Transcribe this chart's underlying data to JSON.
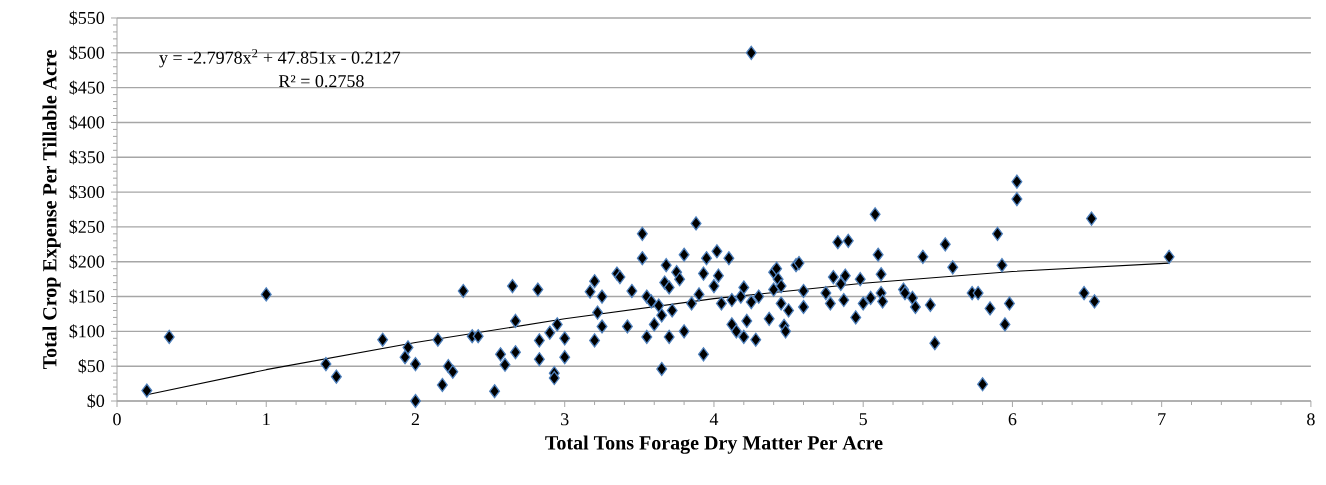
{
  "chart_data": {
    "type": "scatter",
    "xlabel": "Total Tons Forage Dry Matter Per Acre",
    "ylabel": "Total Crop Expense Per Tillable Acre",
    "annotations": [
      "y = -2.7978x$^{2}$ + 47.851x - 0.2127",
      "R² = 0.2758"
    ],
    "xlim": [
      0,
      8
    ],
    "xticks": [
      0,
      1,
      2,
      3,
      4,
      5,
      6,
      7,
      8
    ],
    "ylim": [
      0,
      550
    ],
    "yticks": [
      {
        "value": 0,
        "label": "$0"
      },
      {
        "value": 50,
        "label": "$50"
      },
      {
        "value": 100,
        "label": "$100"
      },
      {
        "value": 150,
        "label": "$150"
      },
      {
        "value": 200,
        "label": "$200"
      },
      {
        "value": 250,
        "label": "$250"
      },
      {
        "value": 300,
        "label": "$300"
      },
      {
        "value": 350,
        "label": "$350"
      },
      {
        "value": 400,
        "label": "$400"
      },
      {
        "value": 450,
        "label": "$450"
      },
      {
        "value": 500,
        "label": "$500"
      },
      {
        "value": 550,
        "label": "$550"
      }
    ],
    "grid": "y",
    "series": [
      {
        "color": "#000000",
        "marker": "diamond",
        "x": [
          0.2,
          0.35,
          1.0,
          1.4,
          1.47,
          1.78,
          1.93,
          1.95,
          2.0,
          2.0,
          2.15,
          2.18,
          2.22,
          2.25,
          2.32,
          2.38,
          2.42,
          2.53,
          2.57,
          2.6,
          2.65,
          2.67,
          2.67,
          2.82,
          2.83,
          2.83,
          2.9,
          2.93,
          2.93,
          2.95,
          3.0,
          3.0,
          3.17,
          3.2,
          3.2,
          3.22,
          3.25,
          3.25,
          3.35,
          3.37,
          3.42,
          3.45,
          3.52,
          3.52,
          3.55,
          3.58,
          3.55,
          3.6,
          3.63,
          3.65,
          3.65,
          3.67,
          3.68,
          3.7,
          3.7,
          3.72,
          3.75,
          3.77,
          3.8,
          3.8,
          3.85,
          3.88,
          3.9,
          3.93,
          3.93,
          3.95,
          4.02,
          4.0,
          4.03,
          4.05,
          4.1,
          4.12,
          4.12,
          4.15,
          4.18,
          4.2,
          4.2,
          4.22,
          4.25,
          4.25,
          4.28,
          4.3,
          4.37,
          4.4,
          4.4,
          4.42,
          4.43,
          4.45,
          4.45,
          4.47,
          4.48,
          4.5,
          4.55,
          4.57,
          4.6,
          4.6,
          4.75,
          4.78,
          4.8,
          4.83,
          4.85,
          4.87,
          4.88,
          4.9,
          4.95,
          4.98,
          5.0,
          5.05,
          5.08,
          5.1,
          5.12,
          5.12,
          5.13,
          5.27,
          5.28,
          5.33,
          5.35,
          5.4,
          5.45,
          5.48,
          5.55,
          5.6,
          5.73,
          5.77,
          5.8,
          5.85,
          5.9,
          5.93,
          5.95,
          5.98,
          6.03,
          6.03,
          6.48,
          6.53,
          6.55,
          7.05
        ],
        "values": [
          15,
          92,
          153,
          53,
          35,
          88,
          63,
          77,
          53,
          0,
          88,
          23,
          50,
          42,
          158,
          93,
          93,
          14,
          67,
          52,
          165,
          115,
          70,
          160,
          87,
          60,
          98,
          40,
          33,
          110,
          90,
          63,
          157,
          172,
          87,
          127,
          107,
          150,
          183,
          178,
          107,
          158,
          240,
          205,
          150,
          143,
          92,
          110,
          137,
          123,
          46,
          170,
          195,
          163,
          92,
          130,
          185,
          175,
          210,
          100,
          140,
          255,
          153,
          67,
          183,
          205,
          215,
          165,
          180,
          140,
          205,
          145,
          110,
          100,
          150,
          163,
          92,
          115,
          500,
          142,
          88,
          150,
          118,
          185,
          160,
          190,
          175,
          165,
          140,
          108,
          100,
          130,
          195,
          198,
          135,
          158,
          155,
          140,
          178,
          228,
          168,
          145,
          180,
          230,
          120,
          175,
          140,
          148,
          268,
          210,
          155,
          182,
          143,
          160,
          155,
          148,
          135,
          207,
          138,
          83,
          225,
          192,
          155,
          155,
          24,
          133,
          240,
          195,
          110,
          140,
          315,
          290,
          155,
          262,
          143,
          207
        ]
      },
      {
        "type": "line",
        "color": "#000000",
        "x": [
          0.2,
          1,
          2,
          3,
          4,
          5,
          6,
          7.05
        ],
        "values": [
          9,
          45,
          84,
          118,
          147,
          169,
          186,
          198
        ]
      }
    ]
  }
}
